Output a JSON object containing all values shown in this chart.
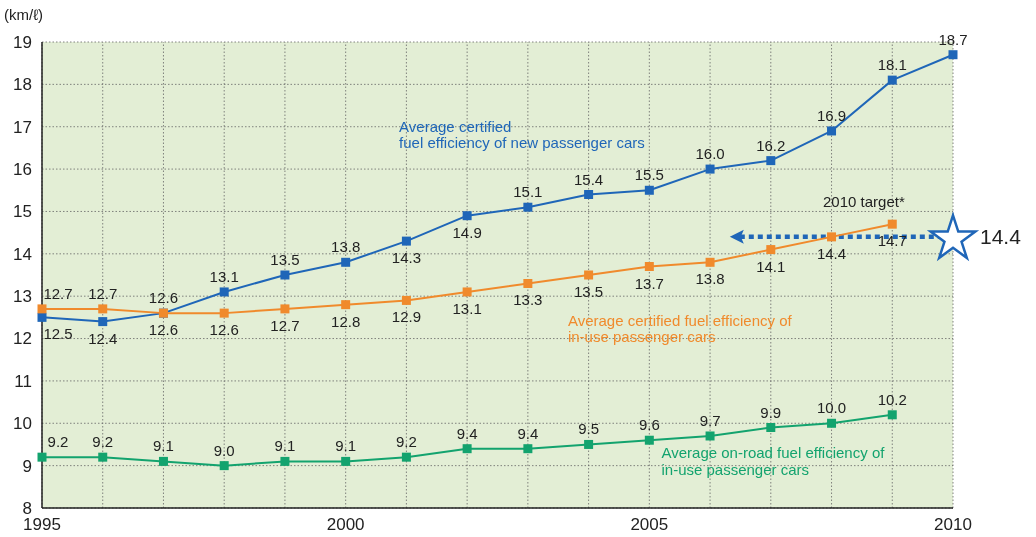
{
  "chart_data": {
    "type": "line",
    "ylabel": "(km/ℓ)",
    "x": [
      1995,
      1996,
      1997,
      1998,
      1999,
      2000,
      2001,
      2002,
      2003,
      2004,
      2005,
      2006,
      2007,
      2008,
      2009,
      2010
    ],
    "xlim": [
      1995,
      2010
    ],
    "xticks": [
      1995,
      {
        "value": 1996,
        "label": null
      },
      {
        "value": 1997,
        "label": null
      },
      {
        "value": 1998,
        "label": null
      },
      {
        "value": 1999,
        "label": null
      },
      2000,
      {
        "value": 2001,
        "label": null
      },
      {
        "value": 2002,
        "label": null
      },
      {
        "value": 2003,
        "label": null
      },
      {
        "value": 2004,
        "label": null
      },
      2005,
      {
        "value": 2006,
        "label": null
      },
      {
        "value": 2007,
        "label": null
      },
      {
        "value": 2008,
        "label": null
      },
      {
        "value": 2009,
        "label": null
      },
      2010
    ],
    "ylim": [
      8,
      19
    ],
    "yticks": [
      8,
      9,
      10,
      11,
      12,
      13,
      14,
      15,
      16,
      17,
      18,
      19
    ],
    "series": [
      {
        "name": "Average certified fuel efficiency of new passenger cars",
        "color": "#1f66b8",
        "values": [
          12.5,
          12.4,
          12.6,
          13.1,
          13.5,
          13.8,
          14.3,
          14.9,
          15.1,
          15.4,
          15.5,
          16.0,
          16.2,
          16.9,
          18.1,
          18.7
        ],
        "value_labels": [
          "12.5",
          "12.4",
          "12.6",
          "13.1",
          "13.5",
          "13.8",
          "14.3",
          "14.9",
          "15.1",
          "15.4",
          "15.5",
          "16.0",
          "16.2",
          "16.9",
          "18.1",
          "18.7"
        ]
      },
      {
        "name": "Average certified fuel efficiency of in-use passenger cars",
        "color": "#f08a2c",
        "values": [
          12.7,
          12.7,
          12.6,
          12.6,
          12.7,
          12.8,
          12.9,
          13.1,
          13.3,
          13.5,
          13.7,
          13.8,
          14.1,
          14.4,
          14.7,
          null
        ],
        "value_labels": [
          "12.7",
          "12.7",
          "12.6",
          "12.6",
          "12.7",
          "12.8",
          "12.9",
          "13.1",
          "13.3",
          "13.5",
          "13.7",
          "13.8",
          "14.1",
          "14.4",
          "14.7",
          null
        ]
      },
      {
        "name": "Average on-road fuel efficiency of in-use passenger cars",
        "color": "#13a36e",
        "values": [
          9.2,
          9.2,
          9.1,
          9.0,
          9.1,
          9.1,
          9.2,
          9.4,
          9.4,
          9.5,
          9.6,
          9.7,
          9.9,
          10.0,
          10.2,
          null
        ],
        "value_labels": [
          "9.2",
          "9.2",
          "9.1",
          "9.0",
          "9.1",
          "9.1",
          "9.2",
          "9.4",
          "9.4",
          "9.5",
          "9.6",
          "9.7",
          "9.9",
          "10.0",
          "10.2",
          null
        ]
      }
    ],
    "ref_lines": [
      {
        "axis": "y",
        "value": 14.4,
        "label": "14.4",
        "color": "#1f66b8",
        "line_style": "dotted"
      }
    ],
    "annotations": [
      "2010 target*"
    ],
    "grid": true,
    "marker": "square",
    "line_style": "solid",
    "legend": false
  }
}
